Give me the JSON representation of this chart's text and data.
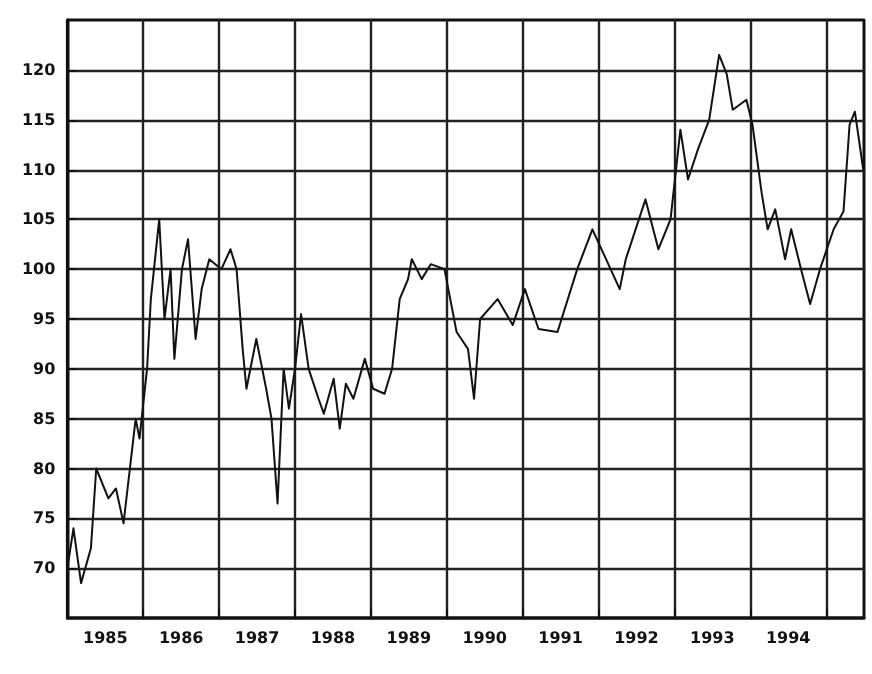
{
  "chart_data": {
    "type": "line",
    "x": [
      1985.0,
      1985.08,
      1985.18,
      1985.31,
      1985.38,
      1985.54,
      1985.64,
      1985.74,
      1985.9,
      1985.95,
      1986.05,
      1986.1,
      1986.21,
      1986.28,
      1986.36,
      1986.41,
      1986.51,
      1986.59,
      1986.69,
      1986.77,
      1986.87,
      1987.03,
      1987.15,
      1987.23,
      1987.31,
      1987.36,
      1987.49,
      1987.62,
      1987.69,
      1987.77,
      1987.85,
      1987.92,
      1988.0,
      1988.08,
      1988.18,
      1988.31,
      1988.38,
      1988.51,
      1988.59,
      1988.67,
      1988.77,
      1988.92,
      1989.03,
      1989.18,
      1989.28,
      1989.38,
      1989.49,
      1989.54,
      1989.67,
      1989.79,
      1989.97,
      1990.13,
      1990.28,
      1990.36,
      1990.44,
      1990.67,
      1990.87,
      1991.03,
      1991.21,
      1991.46,
      1991.72,
      1991.92,
      1992.1,
      1992.28,
      1992.36,
      1992.62,
      1992.79,
      1992.95,
      1993.08,
      1993.18,
      1993.31,
      1993.46,
      1993.59,
      1993.69,
      1993.77,
      1993.95,
      1994.03,
      1994.15,
      1994.23,
      1994.33,
      1994.46,
      1994.54,
      1994.67,
      1994.79,
      1994.92,
      1995.1,
      1995.23,
      1995.31,
      1995.38,
      1995.49
    ],
    "values": [
      70,
      74,
      68.5,
      72,
      80,
      77,
      78,
      74.5,
      85,
      83,
      90,
      97,
      105,
      95,
      100,
      91,
      100,
      103,
      93,
      98,
      101,
      100,
      102,
      100,
      92,
      88,
      93,
      88,
      85,
      76.5,
      90,
      86,
      90,
      95.5,
      90,
      87,
      85.5,
      89,
      84,
      88.5,
      87,
      91,
      88,
      87.5,
      90,
      97,
      99,
      101,
      99,
      100.5,
      100,
      93.7,
      92,
      87,
      95,
      97,
      94.4,
      98,
      94,
      93.7,
      100,
      104,
      101,
      98,
      101,
      107,
      102,
      105,
      114,
      109,
      112,
      115,
      121.5,
      119.6,
      116,
      117,
      114.5,
      107.7,
      104,
      106,
      101,
      104,
      100,
      96.5,
      100,
      104,
      105.8,
      114.5,
      115.8,
      110
    ],
    "color": "#111111",
    "line_style": "solid",
    "marker": "none",
    "grid": true,
    "xlim": [
      1985,
      1995.5
    ],
    "xticks": [
      {
        "value": 1985.5,
        "label": "1985"
      },
      {
        "value": 1986,
        "label": null
      },
      {
        "value": 1986.5,
        "label": "1986"
      },
      {
        "value": 1987,
        "label": null
      },
      {
        "value": 1987.5,
        "label": "1987"
      },
      {
        "value": 1988,
        "label": null
      },
      {
        "value": 1988.5,
        "label": "1988"
      },
      {
        "value": 1989,
        "label": null
      },
      {
        "value": 1989.5,
        "label": "1989"
      },
      {
        "value": 1990,
        "label": null
      },
      {
        "value": 1990.5,
        "label": "1990"
      },
      {
        "value": 1991,
        "label": null
      },
      {
        "value": 1991.5,
        "label": "1991"
      },
      {
        "value": 1992,
        "label": null
      },
      {
        "value": 1992.5,
        "label": "1992"
      },
      {
        "value": 1993,
        "label": null
      },
      {
        "value": 1993.5,
        "label": "1993"
      },
      {
        "value": 1994,
        "label": null
      },
      {
        "value": 1994.5,
        "label": "1994"
      },
      {
        "value": 1995,
        "label": null
      }
    ],
    "ylim": [
      65,
      125
    ],
    "yticks": [
      70,
      75,
      80,
      85,
      90,
      95,
      100,
      105,
      110,
      115,
      120
    ]
  }
}
